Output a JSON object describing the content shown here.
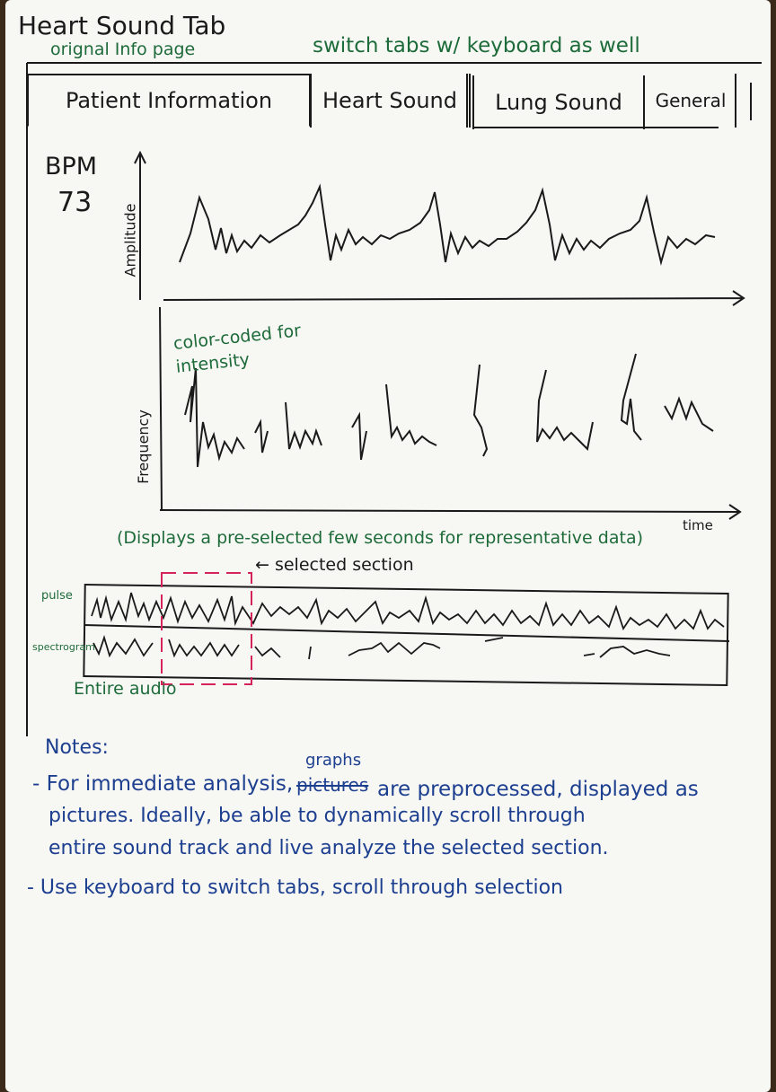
{
  "header": {
    "title": "Heart Sound Tab",
    "subtitle": "orignal Info page",
    "hint": "switch tabs w/ keyboard as well"
  },
  "tabs": [
    {
      "label": "Patient Information"
    },
    {
      "label": "Heart Sound"
    },
    {
      "label": "Lung Sound"
    },
    {
      "label": "General"
    }
  ],
  "bpm": {
    "label": "BPM",
    "value": "73"
  },
  "plots": {
    "amplitude_label": "Amplitude",
    "frequency_label": "Frequency",
    "time_label": "time",
    "color_note": "color-coded for intensity",
    "display_note": "(Displays a pre-selected few seconds for representative data)"
  },
  "overview": {
    "selected_label": "← selected section",
    "row_pulse": "pulse",
    "row_spectrogram": "spectrogram",
    "entire_label": "Entire audio"
  },
  "notes": {
    "heading": "Notes:",
    "inserted_word": "graphs",
    "struck_word": "pictures",
    "line1_a": "- For immediate analysis,",
    "line1_b": "are preprocessed, displayed as",
    "line2": "pictures. Ideally, be able to dynamically scroll through",
    "line3": "entire sound track and live analyze the selected section.",
    "line4": "- Use keyboard to switch tabs, scroll through selection"
  },
  "colors": {
    "ink": "#1a1a1a",
    "green_ink": "#1e6b3a",
    "blue_ink": "#1d3f8f",
    "selection": "#d6245a"
  }
}
